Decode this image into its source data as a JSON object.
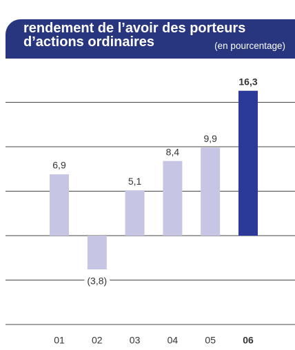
{
  "chart_data": {
    "type": "bar",
    "title": "rendement de l’avoir des porteurs d’actions ordinaires",
    "subtitle": "(en pourcentage)",
    "categories": [
      "01",
      "02",
      "03",
      "04",
      "05",
      "06"
    ],
    "values": [
      6.9,
      -3.8,
      5.1,
      8.4,
      9.9,
      16.3
    ],
    "value_labels": [
      "6,9",
      "(3,8)",
      "5,1",
      "8,4",
      "9,9",
      "16,3"
    ],
    "colors": [
      "#c6c6e4",
      "#c6c6e4",
      "#c6c6e4",
      "#c6c6e4",
      "#c6c6e4",
      "#2b3a98"
    ],
    "highlight": 5,
    "ylim": [
      -10,
      20
    ],
    "yticks": [
      -10,
      -5,
      0,
      5,
      10,
      15
    ],
    "grid": true
  }
}
